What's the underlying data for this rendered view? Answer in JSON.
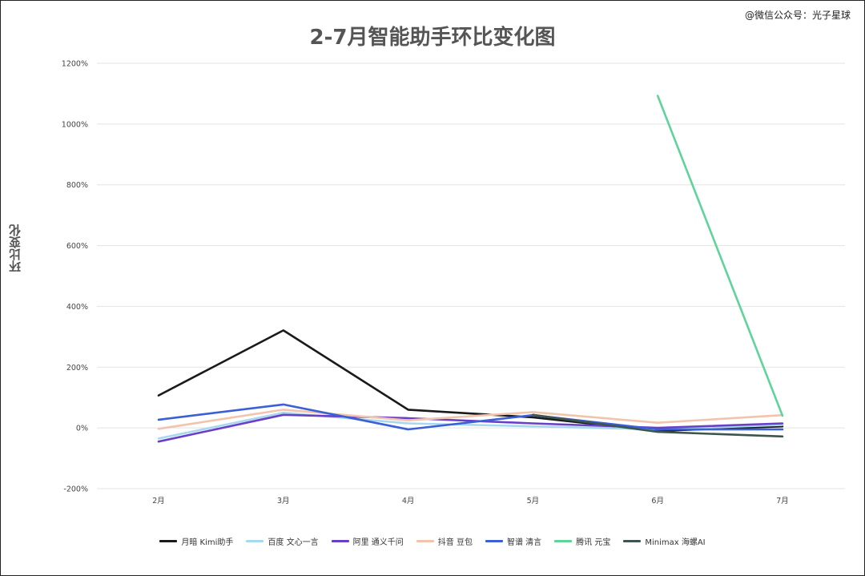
{
  "watermark": "@微信公众号：光子星球",
  "chart_data": {
    "type": "line",
    "title": "2-7月智能助手环比变化图",
    "xlabel": "",
    "ylabel": "环比变化",
    "categories": [
      "2月",
      "3月",
      "4月",
      "5月",
      "6月",
      "7月"
    ],
    "ylim": [
      -200,
      1200
    ],
    "yticks": [
      -200,
      0,
      200,
      400,
      600,
      800,
      1000,
      1200
    ],
    "ytick_labels": [
      "-200%",
      "0%",
      "200%",
      "400%",
      "600%",
      "800%",
      "1000%",
      "1200%"
    ],
    "grid": true,
    "legend": "bottom",
    "series": [
      {
        "name": "月暗 Kimi助手",
        "color": "#1a1a1a",
        "values": [
          107,
          321,
          60,
          35,
          -10,
          5
        ]
      },
      {
        "name": "百度 文心一言",
        "color": "#a8d8f0",
        "values": [
          -35,
          50,
          15,
          5,
          -5,
          10
        ]
      },
      {
        "name": "阿里 通义千问",
        "color": "#6a3fc8",
        "values": [
          -45,
          43,
          32,
          15,
          0,
          15
        ]
      },
      {
        "name": "抖音 豆包",
        "color": "#f2c4ad",
        "values": [
          -3,
          60,
          25,
          52,
          17,
          42
        ]
      },
      {
        "name": "智谱 清言",
        "color": "#3b5fd6",
        "values": [
          27,
          77,
          -5,
          42,
          -5,
          -5
        ]
      },
      {
        "name": "腾讯 元宝",
        "color": "#5fd39a",
        "values": [
          null,
          null,
          null,
          null,
          1093,
          40
        ]
      },
      {
        "name": "Minimax 海螺AI",
        "color": "#3d5550",
        "values": [
          null,
          null,
          null,
          43,
          -13,
          -28
        ]
      }
    ]
  }
}
